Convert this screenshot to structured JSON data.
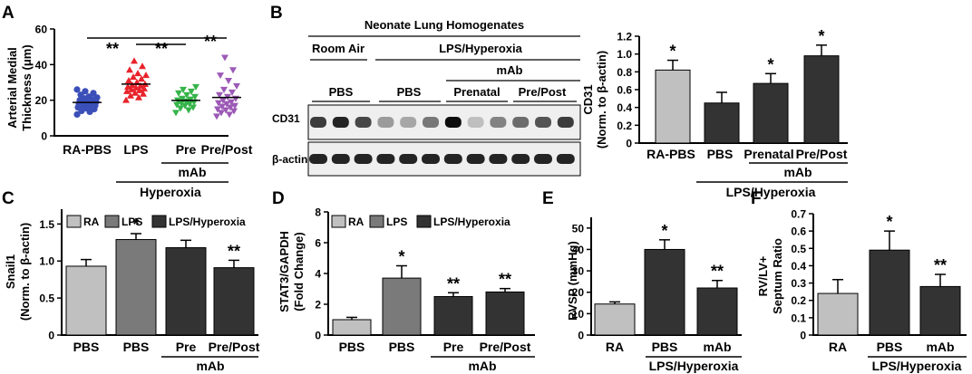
{
  "panels": {
    "A": {
      "letter": "A",
      "ylabel_line1": "Arterial Medial",
      "ylabel_line2": "Thickness (μm)",
      "yticks": [
        "0",
        "20",
        "40",
        "60"
      ],
      "xticks": [
        "RA-PBS",
        "LPS",
        "Pre",
        "Pre/Post"
      ],
      "group1_label": "mAb",
      "group2_label": "Hyperoxia",
      "significance": [
        "**",
        "**",
        "**"
      ]
    },
    "B": {
      "letter": "B",
      "header": "Neonate Lung Homogenates",
      "room_air": "Room Air",
      "lps_hyperoxia": "LPS/Hyperoxia",
      "mab": "mAb",
      "pbs1": "PBS",
      "pbs2": "PBS",
      "prenatal": "Prenatal",
      "prepost": "Pre/Post",
      "band1": "CD31",
      "band2": "β-actin",
      "ylabel_line1": "CD31",
      "ylabel_line2": "(Norm. to β-actin)",
      "yticks": [
        "0",
        "0.2",
        "0.4",
        "0.6",
        "0.8",
        "1.0",
        "1.2"
      ],
      "xticks": [
        "RA-PBS",
        "PBS",
        "Prenatal",
        "Pre/Post"
      ],
      "group1_label": "mAb",
      "group2_label": "LPS/Hyperoxia",
      "stars": [
        "*",
        "*",
        "*"
      ]
    },
    "C": {
      "letter": "C",
      "ylabel_line1": "Snail1",
      "ylabel_line2": "(Norm. to β-actin)",
      "yticks": [
        "0",
        "0.5",
        "1.0",
        "1.5"
      ],
      "xticks": [
        "PBS",
        "PBS",
        "Pre",
        "Pre/Post"
      ],
      "group_label": "mAb",
      "legend": [
        "RA",
        "LPS",
        "LPS/Hyperoxia"
      ],
      "stars": [
        "*",
        "**"
      ]
    },
    "D": {
      "letter": "D",
      "ylabel_line1": "STAT3/GAPDH",
      "ylabel_line2": "(Fold Change)",
      "yticks": [
        "0",
        "2",
        "4",
        "6",
        "8"
      ],
      "xticks": [
        "PBS",
        "PBS",
        "Pre",
        "Pre/Post"
      ],
      "group_label": "mAb",
      "legend": [
        "RA",
        "LPS",
        "LPS/Hyperoxia"
      ],
      "stars": [
        "*",
        "**",
        "**"
      ]
    },
    "E": {
      "letter": "E",
      "ylabel": "RVSP (mmHg)",
      "yticks": [
        "0",
        "10",
        "20",
        "30",
        "40",
        "50"
      ],
      "xticks": [
        "RA",
        "PBS",
        "mAb"
      ],
      "group_label": "LPS/Hyperoxia",
      "stars": [
        "*",
        "**"
      ]
    },
    "F": {
      "letter": "F",
      "ylabel_line1": "RV/LV+",
      "ylabel_line2": "Septum Ratio",
      "yticks": [
        "0",
        "0.1",
        "0.2",
        "0.3",
        "0.4",
        "0.5",
        "0.6",
        "0.7"
      ],
      "xticks": [
        "RA",
        "PBS",
        "mAb"
      ],
      "group_label": "LPS/Hyperoxia",
      "stars": [
        "*",
        "**"
      ]
    }
  },
  "colors": {
    "ra": "#c0c0c0",
    "lps": "#7a7a7a",
    "hyperoxia": "#333333",
    "scatter": [
      "#3b4fb8",
      "#e8232b",
      "#35b449",
      "#9c59b6"
    ]
  },
  "chart_data": [
    {
      "panel": "A",
      "type": "scatter",
      "categories": [
        "RA-PBS",
        "LPS",
        "Pre",
        "Pre/Post"
      ],
      "ylabel": "Arterial Medial Thickness (μm)",
      "ylim": [
        0,
        60
      ],
      "series": [
        {
          "values": [
            12,
            13.5,
            14,
            15,
            15.5,
            16,
            16.5,
            17,
            17,
            17.5,
            18,
            18,
            18.5,
            19,
            19.5,
            20,
            20.5,
            21,
            21.5,
            22,
            23,
            24,
            25,
            26
          ]
        },
        {
          "values": [
            20,
            21.5,
            22.5,
            23.5,
            24,
            25,
            25.5,
            26,
            26.5,
            27,
            27.5,
            28,
            28.5,
            29,
            30,
            31,
            32,
            33,
            34,
            35,
            37,
            39,
            42
          ]
        },
        {
          "values": [
            13,
            14.5,
            15.5,
            16,
            17,
            17.5,
            18,
            18.5,
            19,
            19.5,
            20,
            20.5,
            21,
            22,
            23,
            24,
            25,
            26,
            27.5
          ]
        },
        {
          "values": [
            11,
            12,
            13,
            14,
            14.5,
            15,
            16,
            16.5,
            17,
            18,
            18.5,
            19,
            20,
            21,
            22,
            23,
            24.5,
            26,
            28,
            31,
            34,
            37,
            44
          ]
        }
      ]
    },
    {
      "panel": "B",
      "type": "bar",
      "categories": [
        "RA-PBS",
        "PBS",
        "Prenatal",
        "Pre/Post"
      ],
      "values": [
        0.82,
        0.45,
        0.67,
        0.98
      ],
      "errors": [
        0.11,
        0.12,
        0.11,
        0.12
      ],
      "ylabel": "CD31 (Norm. to β-actin)",
      "ylim": [
        0,
        1.2
      ]
    },
    {
      "panel": "C",
      "type": "bar",
      "categories": [
        "PBS",
        "PBS",
        "Pre",
        "Pre/Post"
      ],
      "values": [
        0.93,
        1.29,
        1.18,
        0.91
      ],
      "errors": [
        0.09,
        0.08,
        0.1,
        0.1
      ],
      "ylabel": "Snail1 (Norm. to β-actin)",
      "ylim": [
        0,
        1.7
      ]
    },
    {
      "panel": "D",
      "type": "bar",
      "categories": [
        "PBS",
        "PBS",
        "Pre",
        "Pre/Post"
      ],
      "values": [
        1.0,
        3.7,
        2.5,
        2.8
      ],
      "errors": [
        0.15,
        0.8,
        0.25,
        0.22
      ],
      "ylabel": "STAT3/GAPDH (Fold Change)",
      "ylim": [
        0,
        8
      ]
    },
    {
      "panel": "E",
      "type": "bar",
      "categories": [
        "RA",
        "PBS",
        "mAb"
      ],
      "values": [
        14.5,
        40.0,
        22.0
      ],
      "errors": [
        1.0,
        4.5,
        3.5
      ],
      "ylabel": "RVSP (mmHg)",
      "ylim": [
        0,
        55
      ]
    },
    {
      "panel": "F",
      "type": "bar",
      "categories": [
        "RA",
        "PBS",
        "mAb"
      ],
      "values": [
        0.24,
        0.49,
        0.28
      ],
      "errors": [
        0.08,
        0.11,
        0.07
      ],
      "ylabel": "RV/LV+ Septum Ratio",
      "ylim": [
        0,
        0.7
      ]
    }
  ]
}
